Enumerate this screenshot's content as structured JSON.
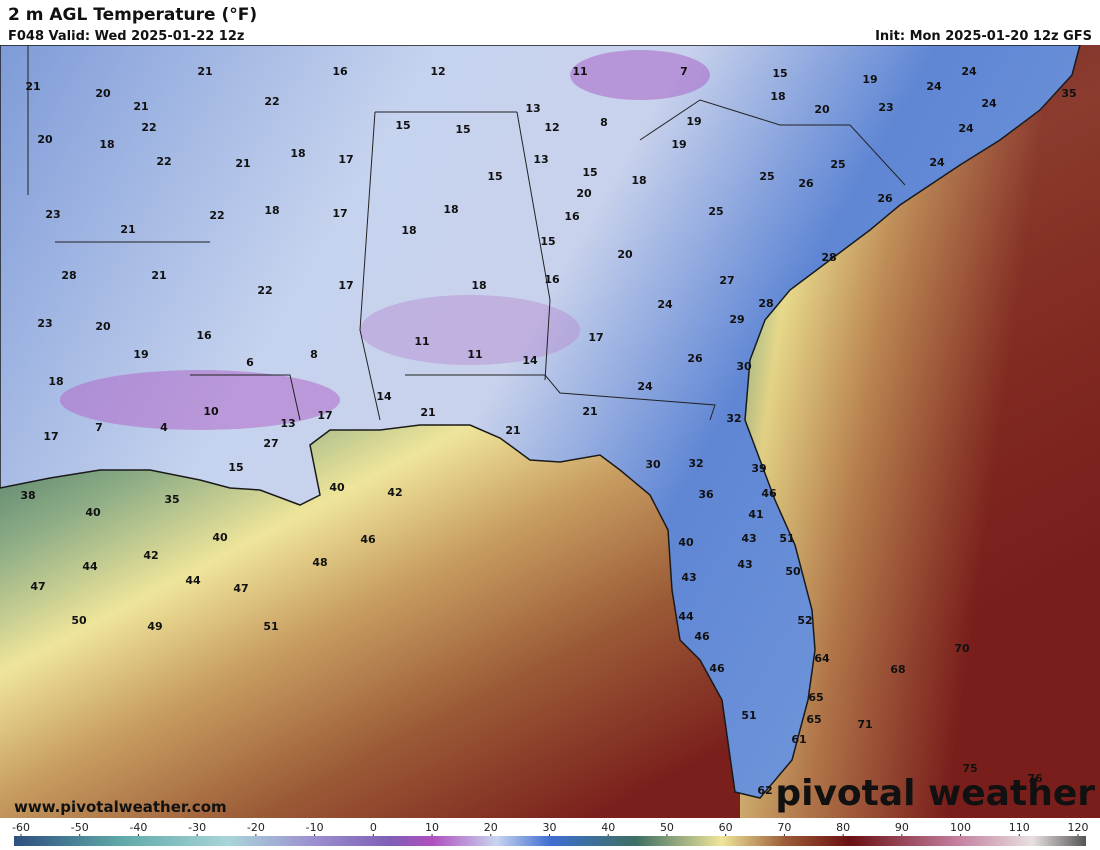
{
  "header": {
    "title": "2 m AGL Temperature (°F)",
    "valid": "F048 Valid: Wed 2025-01-22 12z",
    "init": "Init: Mon 2025-01-20 12z GFS"
  },
  "map": {
    "temperature_labels": [
      21,
      21,
      16,
      12,
      11,
      7,
      15,
      19,
      24,
      24,
      20,
      21,
      22,
      18,
      20,
      23,
      24,
      35,
      20,
      22,
      13,
      15,
      15,
      12,
      8,
      19,
      24,
      18,
      22,
      21,
      18,
      17,
      13,
      19,
      25,
      15,
      15,
      18,
      25,
      26,
      24,
      23,
      22,
      18,
      17,
      18,
      20,
      16,
      25,
      26,
      21,
      18,
      15,
      20,
      28,
      28,
      21,
      22,
      17,
      18,
      16,
      27,
      28,
      24,
      23,
      20,
      16,
      11,
      11,
      14,
      17,
      29,
      19,
      6,
      8,
      26,
      30,
      18,
      14,
      24,
      10,
      17,
      21,
      21,
      32,
      7,
      4,
      13,
      17,
      27,
      21,
      15,
      30,
      32,
      39,
      38,
      40,
      42,
      46,
      35,
      36,
      40,
      41,
      40,
      46,
      43,
      51,
      40,
      42,
      43,
      44,
      48,
      50,
      43,
      44,
      47,
      47,
      50,
      49,
      51,
      44,
      52,
      46,
      70,
      64,
      68,
      46,
      65,
      51,
      65,
      71,
      61,
      75,
      76,
      62
    ]
  },
  "footer": {
    "website": "www.pivotalweather.com",
    "logo": "pivotal weather"
  },
  "colorbar": {
    "lim": [
      -60,
      120
    ],
    "ticks": [
      -60,
      -50,
      -40,
      -30,
      -20,
      -10,
      0,
      10,
      20,
      30,
      40,
      50,
      60,
      70,
      80,
      90,
      100,
      110,
      120
    ]
  }
}
